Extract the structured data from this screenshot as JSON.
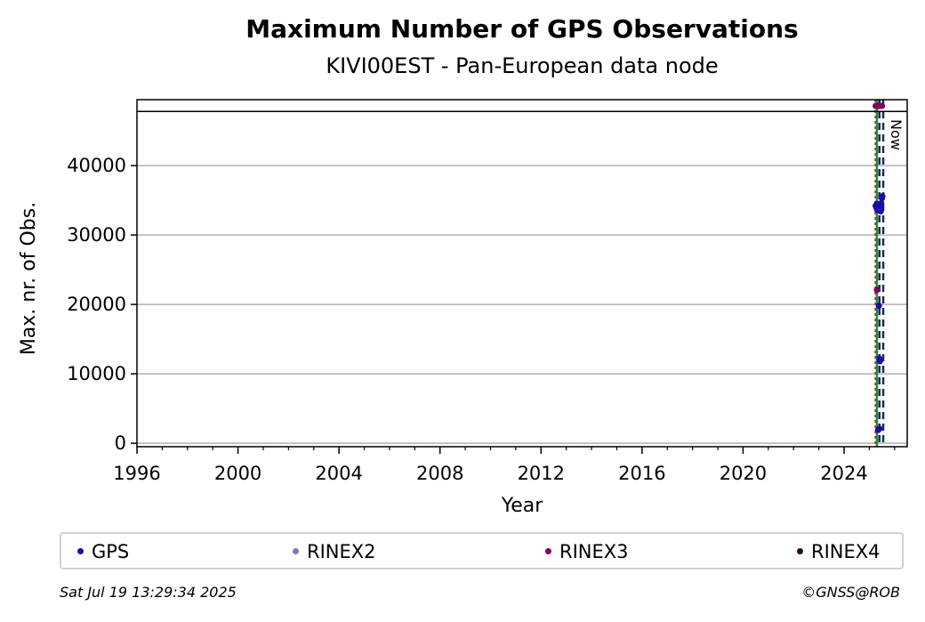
{
  "chart_data": {
    "type": "scatter",
    "title": "Maximum Number of GPS Observations",
    "subtitle": "KIVI00EST - Pan-European data node",
    "xlabel": "Year",
    "ylabel": "Max. nr. of Obs.",
    "xlim": [
      1996,
      2026.5
    ],
    "ylim": [
      -500,
      49500
    ],
    "xticks": [
      1996,
      2000,
      2004,
      2008,
      2012,
      2016,
      2020,
      2024
    ],
    "yticks": [
      0,
      10000,
      20000,
      30000,
      40000
    ],
    "grid": "y",
    "legend_position": "bottom",
    "upper_line": 47800,
    "vlines": [
      {
        "x": 2025.25,
        "color": "#cc3300",
        "style": "dotted"
      },
      {
        "x": 2025.3,
        "color": "#1f8a3a",
        "style": "solid"
      },
      {
        "x": 2025.4,
        "color": "#1a2a5a",
        "style": "dashed"
      },
      {
        "x": 2025.55,
        "color": "#1a2a5a",
        "style": "dashed",
        "label": "Now"
      }
    ],
    "series": [
      {
        "name": "GPS",
        "color": "#1a0dab",
        "x": [
          2025.25,
          2025.28,
          2025.3,
          2025.32,
          2025.35,
          2025.38,
          2025.4,
          2025.42,
          2025.45,
          2025.47,
          2025.5,
          2025.52,
          2025.35,
          2025.4,
          2025.45
        ],
        "y": [
          34200,
          33900,
          34500,
          33600,
          34100,
          19800,
          12200,
          11800,
          33400,
          34600,
          35300,
          35600,
          1900,
          2100,
          34000
        ]
      },
      {
        "name": "RINEX2",
        "color": "#7b7bb5",
        "x": [],
        "y": []
      },
      {
        "name": "RINEX3",
        "color": "#800060",
        "x": [
          2025.25,
          2025.3,
          2025.35,
          2025.4,
          2025.45,
          2025.5,
          2025.3
        ],
        "y": [
          48600,
          48600,
          48600,
          48600,
          48600,
          48600,
          22100
        ]
      },
      {
        "name": "RINEX4",
        "color": "#2a0a20",
        "x": [],
        "y": []
      }
    ]
  },
  "footer": {
    "timestamp": "Sat Jul 19 13:29:34 2025",
    "copyright": "©GNSS@ROB"
  }
}
